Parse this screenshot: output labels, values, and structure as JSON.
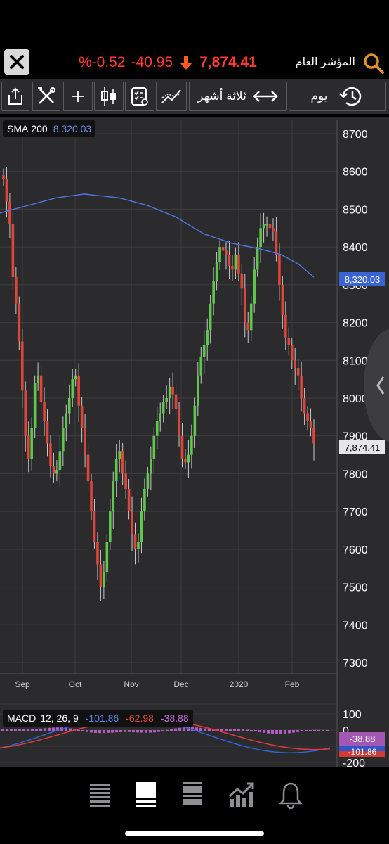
{
  "header": {
    "close_label": "close",
    "percent_change": "%-0.52",
    "change": "-40.95",
    "last": "7,874.41",
    "index_name": "المؤشر العام"
  },
  "toolbar": {
    "range_label": "ثلاثة أشهر",
    "interval_label": "يوم"
  },
  "overlays": {
    "sma_name": "SMA",
    "sma_period": "200",
    "sma_value": "8,320.03",
    "macd_name": "MACD",
    "macd_params": "12, 26, 9",
    "macd_value": "-101.86",
    "signal_value": "-62.98",
    "hist_value": "-38.88"
  },
  "price_axis": {
    "ticks": [
      "8700",
      "8600",
      "8500",
      "8400",
      "8300",
      "8200",
      "8100",
      "8000",
      "7900",
      "7800",
      "7700",
      "7600",
      "7500",
      "7400",
      "7300"
    ],
    "sma_tag": "8,320.03",
    "last_tag": "7,874.41"
  },
  "macd_axis": {
    "ticks": [
      "100",
      "0",
      "-200"
    ],
    "hist_tag": "-38.88",
    "macd_tag": "-101.86"
  },
  "time_axis": {
    "labels": [
      "Sep",
      "Oct",
      "Nov",
      "Dec",
      "2020",
      "Feb"
    ]
  },
  "colors": {
    "up": "#5cc94a",
    "down": "#e0453a",
    "sma": "#4f74e0",
    "macd_line": "#2f63d6",
    "signal_line": "#e03a3a",
    "histogram": "#b45cc4",
    "accent_orange": "#e0912b"
  },
  "chart_data": {
    "type": "candlestick",
    "ylim": [
      7250,
      8750
    ],
    "x_labels": [
      "Sep",
      "Oct",
      "Nov",
      "Dec",
      "2020",
      "Feb"
    ],
    "close_series": [
      8580,
      8520,
      8460,
      8320,
      8250,
      8150,
      8020,
      7900,
      7840,
      7920,
      8040,
      8060,
      7990,
      7940,
      7880,
      7820,
      7800,
      7810,
      7860,
      7920,
      7960,
      8000,
      8050,
      8060,
      7980,
      7920,
      7850,
      7780,
      7700,
      7620,
      7560,
      7500,
      7540,
      7620,
      7700,
      7780,
      7840,
      7860,
      7800,
      7760,
      7700,
      7640,
      7600,
      7620,
      7700,
      7760,
      7800,
      7840,
      7900,
      7940,
      7960,
      7990,
      8000,
      8030,
      8010,
      7970,
      7900,
      7840,
      7830,
      7850,
      7900,
      7980,
      8060,
      8110,
      8140,
      8180,
      8250,
      8310,
      8360,
      8400,
      8390,
      8380,
      8350,
      8340,
      8380,
      8330,
      8290,
      8200,
      8180,
      8250,
      8340,
      8400,
      8450,
      8460,
      8460,
      8450,
      8440,
      8380,
      8300,
      8220,
      8160,
      8140,
      8100,
      8080,
      8060,
      8000,
      7960,
      7940,
      7920,
      7880
    ]
  },
  "nav": {
    "items": [
      "watchlist",
      "chart",
      "list",
      "portfolio",
      "alerts"
    ]
  }
}
